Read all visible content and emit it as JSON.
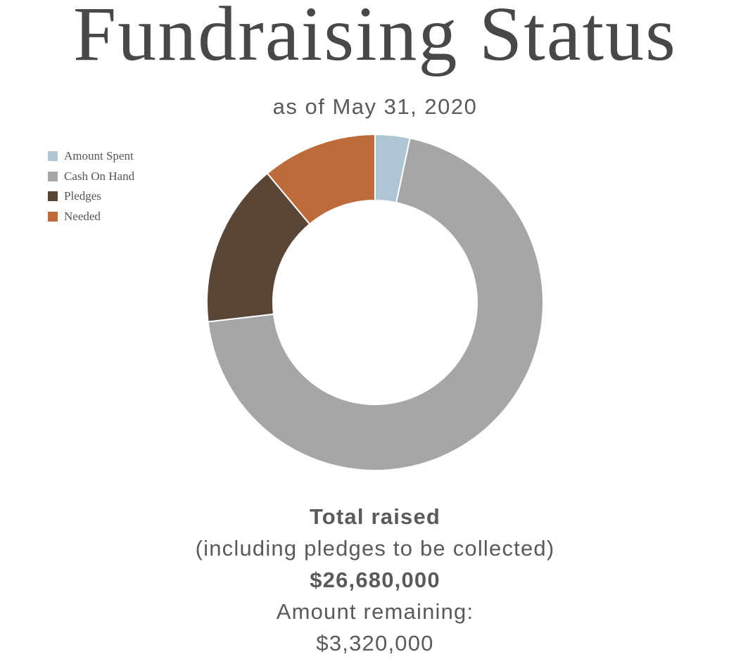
{
  "chart_data": {
    "type": "pie",
    "style": "donut",
    "title": "Fundraising Status",
    "subtitle": "as of May 31, 2020",
    "legend_position": "top-left",
    "categories": [
      "Amount Spent",
      "Cash On Hand",
      "Pledges",
      "Needed"
    ],
    "values": [
      1000000,
      20950000,
      4730000,
      3320000
    ],
    "colors": [
      "#aec6d4",
      "#a6a6a6",
      "#5a4637",
      "#bd6b3a"
    ]
  },
  "summary": {
    "total_label": "Total raised",
    "total_note": "(including pledges to be collected)",
    "total_value": "$26,680,000",
    "remaining_label": "Amount remaining:",
    "remaining_value": "$3,320,000"
  }
}
